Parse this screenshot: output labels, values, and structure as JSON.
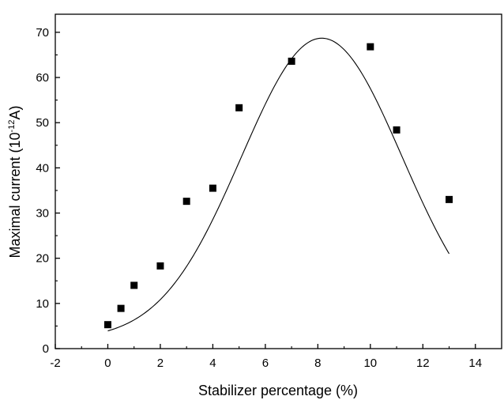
{
  "chart_data": {
    "type": "scatter",
    "title": "",
    "xlabel": "Stabilizer percentage (%)",
    "ylabel": {
      "main": "Maximal current (10",
      "superscript": "-12",
      "suffix": "A)"
    },
    "xlim": [
      -2,
      15
    ],
    "ylim": [
      0,
      74
    ],
    "xticks": [
      -2,
      0,
      2,
      4,
      6,
      8,
      10,
      12,
      14
    ],
    "yticks": [
      0,
      10,
      20,
      30,
      40,
      50,
      60,
      70
    ],
    "grid": false,
    "legend": "none",
    "series": [
      {
        "marker": "square",
        "color": "#000000",
        "x": [
          0,
          0.5,
          1,
          2,
          3,
          4,
          5,
          7,
          10,
          11,
          13
        ],
        "y": [
          5.3,
          8.9,
          14,
          18.3,
          32.6,
          35.5,
          53.3,
          63.6,
          66.8,
          48.4,
          33
        ]
      }
    ],
    "fit_curve": {
      "type": "gaussian",
      "color": "#000000",
      "x_range": [
        0,
        13
      ],
      "y0": 2,
      "amplitude": 66.7,
      "center": 8.15,
      "sigma": 3.06
    }
  }
}
